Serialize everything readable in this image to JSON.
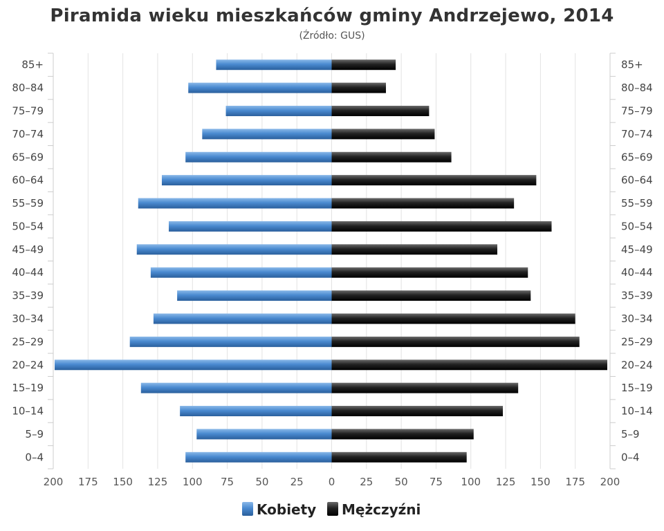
{
  "chart_data": {
    "type": "bar",
    "orientation": "horizontal-pyramid",
    "title": "Piramida wieku mieszkańców gminy Andrzejewo, 2014",
    "subtitle": "(Źródło: GUS)",
    "categories": [
      "85+",
      "80–84",
      "75–79",
      "70–74",
      "65–69",
      "60–64",
      "55–59",
      "50–54",
      "45–49",
      "40–44",
      "35–39",
      "30–34",
      "25–29",
      "20–24",
      "15–19",
      "10–14",
      "5–9",
      "0–4"
    ],
    "series": [
      {
        "name": "Kobiety",
        "color": "#3b7cc0",
        "values": [
          83,
          103,
          76,
          93,
          105,
          122,
          139,
          117,
          140,
          130,
          111,
          128,
          145,
          199,
          137,
          109,
          97,
          105
        ]
      },
      {
        "name": "Mężczyźni",
        "color": "#1a1a1a",
        "values": [
          46,
          39,
          70,
          74,
          86,
          147,
          131,
          158,
          119,
          141,
          143,
          175,
          178,
          198,
          134,
          123,
          102,
          97
        ]
      }
    ],
    "xlim": [
      -200,
      200
    ],
    "x_ticks": [
      200,
      175,
      150,
      125,
      100,
      75,
      50,
      25,
      0,
      25,
      50,
      75,
      100,
      125,
      150,
      175,
      200
    ],
    "grid": true,
    "legend_position": "bottom-center"
  }
}
